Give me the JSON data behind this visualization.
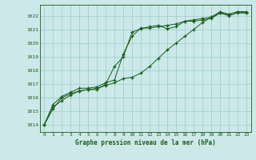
{
  "title": "Graphe pression niveau de la mer (hPa)",
  "bg_color": "#cce8e8",
  "grid_color": "#99cccc",
  "line_color": "#1a5c1a",
  "xlim_min": -0.5,
  "xlim_max": 23.5,
  "ylim_min": 1013.5,
  "ylim_max": 1022.8,
  "yticks": [
    1014,
    1015,
    1016,
    1017,
    1018,
    1019,
    1020,
    1021,
    1022
  ],
  "xticks": [
    0,
    1,
    2,
    3,
    4,
    5,
    6,
    7,
    8,
    9,
    10,
    11,
    12,
    13,
    14,
    15,
    16,
    17,
    18,
    19,
    20,
    21,
    22,
    23
  ],
  "series": [
    [
      1014.0,
      1015.3,
      1015.8,
      1016.2,
      1016.5,
      1016.6,
      1016.6,
      1017.0,
      1018.3,
      1019.0,
      1020.8,
      1021.05,
      1021.2,
      1021.3,
      1021.05,
      1021.2,
      1021.6,
      1021.6,
      1021.7,
      1021.8,
      1022.2,
      1022.0,
      1022.2,
      1022.2
    ],
    [
      1014.0,
      1015.5,
      1016.1,
      1016.4,
      1016.7,
      1016.7,
      1016.8,
      1017.1,
      1017.3,
      1019.2,
      1020.5,
      1021.1,
      1021.1,
      1021.2,
      1021.3,
      1021.4,
      1021.6,
      1021.7,
      1021.8,
      1021.9,
      1022.3,
      1022.1,
      1022.3,
      1022.3
    ],
    [
      1014.0,
      1015.2,
      1016.0,
      1016.3,
      1016.5,
      1016.6,
      1016.7,
      1016.9,
      1017.1,
      1017.4,
      1017.5,
      1017.8,
      1018.3,
      1018.9,
      1019.5,
      1020.0,
      1020.5,
      1021.0,
      1021.5,
      1021.9,
      1022.2,
      1022.1,
      1022.3,
      1022.2
    ]
  ]
}
